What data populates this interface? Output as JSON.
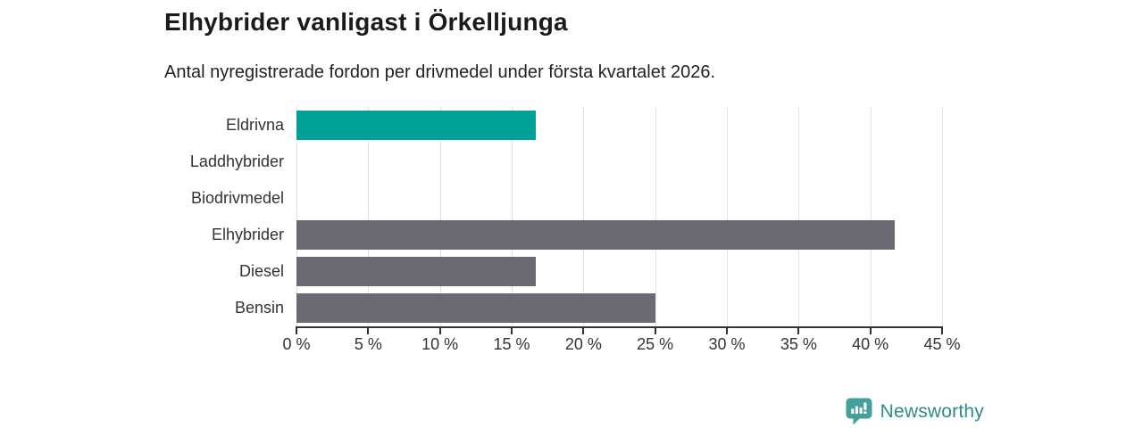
{
  "title": "Elhybrider vanligast i Örkelljunga",
  "subtitle": "Antal nyregistrerade fordon per drivmedel under första kvartalet 2026.",
  "chart_data": {
    "type": "bar",
    "orientation": "horizontal",
    "title": "Elhybrider vanligast i Örkelljunga",
    "subtitle": "Antal nyregistrerade fordon per drivmedel under första kvartalet 2026.",
    "categories": [
      "Eldrivna",
      "Laddhybrider",
      "Biodrivmedel",
      "Elhybrider",
      "Diesel",
      "Bensin"
    ],
    "values": [
      16.7,
      0,
      0,
      41.7,
      16.7,
      25
    ],
    "unit": "%",
    "xlabel": "",
    "ylabel": "",
    "xlim": [
      0,
      45
    ],
    "x_ticks": [
      0,
      5,
      10,
      15,
      20,
      25,
      30,
      35,
      40,
      45
    ],
    "x_tick_labels": [
      "0 %",
      "5 %",
      "10 %",
      "15 %",
      "20 %",
      "25 %",
      "30 %",
      "35 %",
      "40 %",
      "45 %"
    ],
    "grid": true,
    "legend": "none",
    "highlight_color": "#00a096",
    "default_color": "#6b6971",
    "bar_colors": [
      "#00a096",
      "#6b6971",
      "#6b6971",
      "#6b6971",
      "#6b6971",
      "#6b6971"
    ]
  },
  "branding": {
    "logo_text": "Newsworthy",
    "logo_text_color": "#2e8b87",
    "logo_icon_color": "#43a09b"
  },
  "colors": {
    "background": "#ffffff",
    "title_text": "#1b1b1b",
    "subtitle_text": "#222222",
    "axis_text": "#333333",
    "axis_line": "#333333",
    "gridline": "#e2e2e2"
  }
}
